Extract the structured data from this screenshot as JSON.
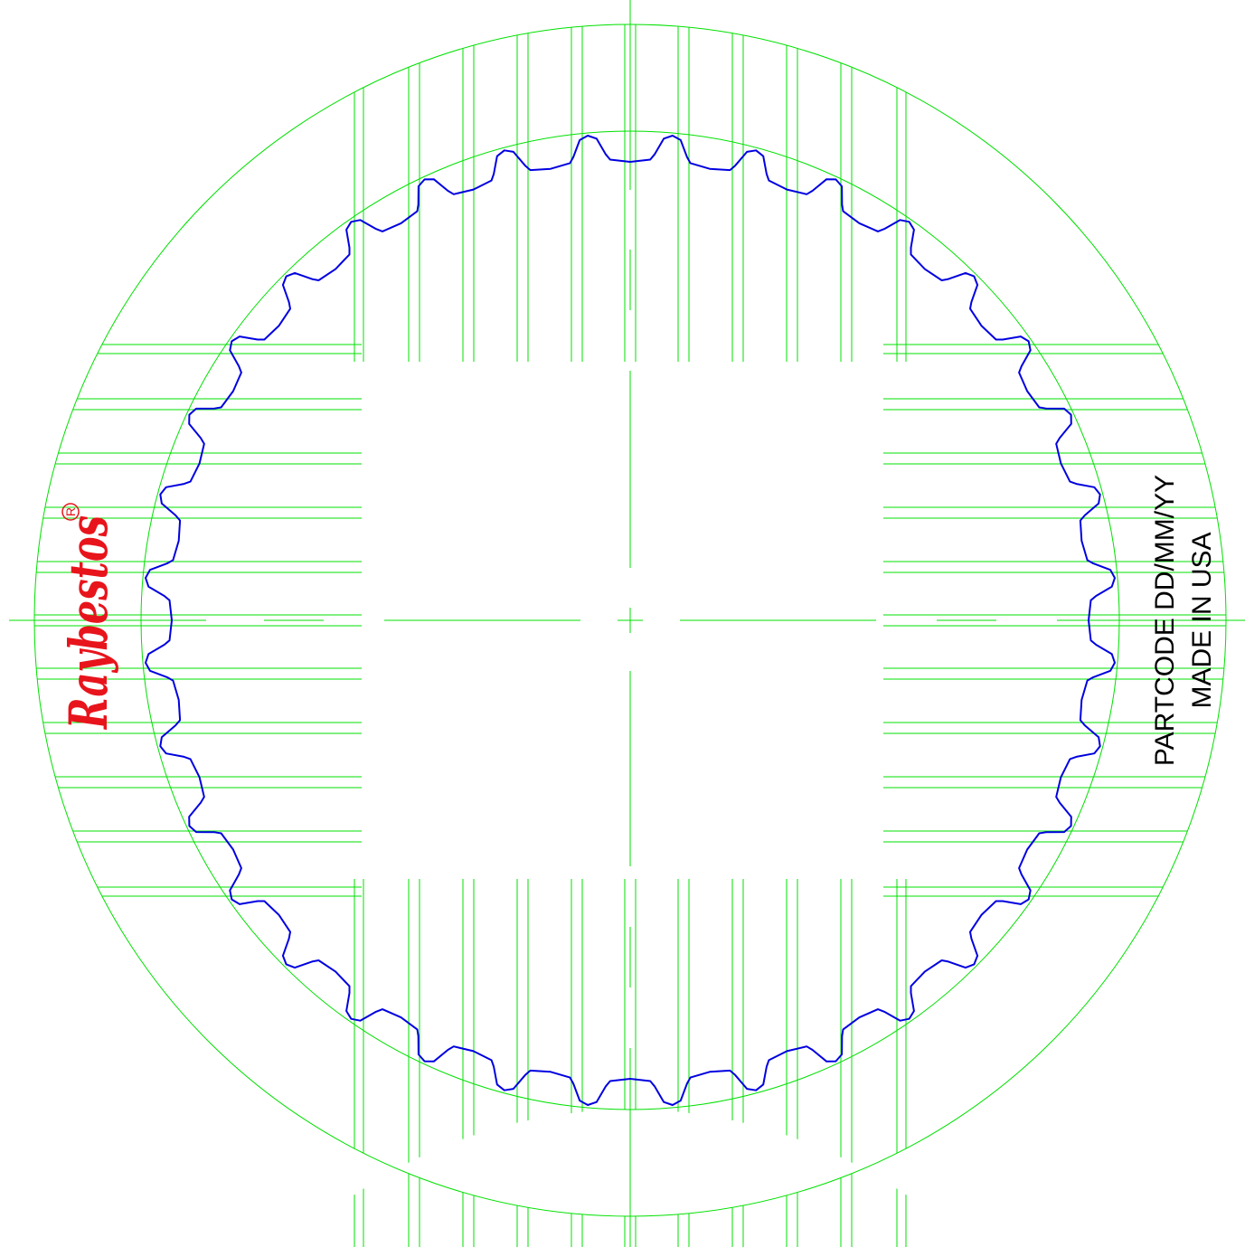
{
  "logo": {
    "brand": "Raybestos",
    "registered_mark": "R",
    "color": "#e8141c"
  },
  "stamp": {
    "line1": "PARTCODE DD/MM/YY",
    "line2": "MADE IN USA"
  },
  "colors": {
    "outline": "#00e000",
    "spline": "#0000e0",
    "text": "#000000"
  },
  "part": {
    "spline_teeth": 36
  }
}
